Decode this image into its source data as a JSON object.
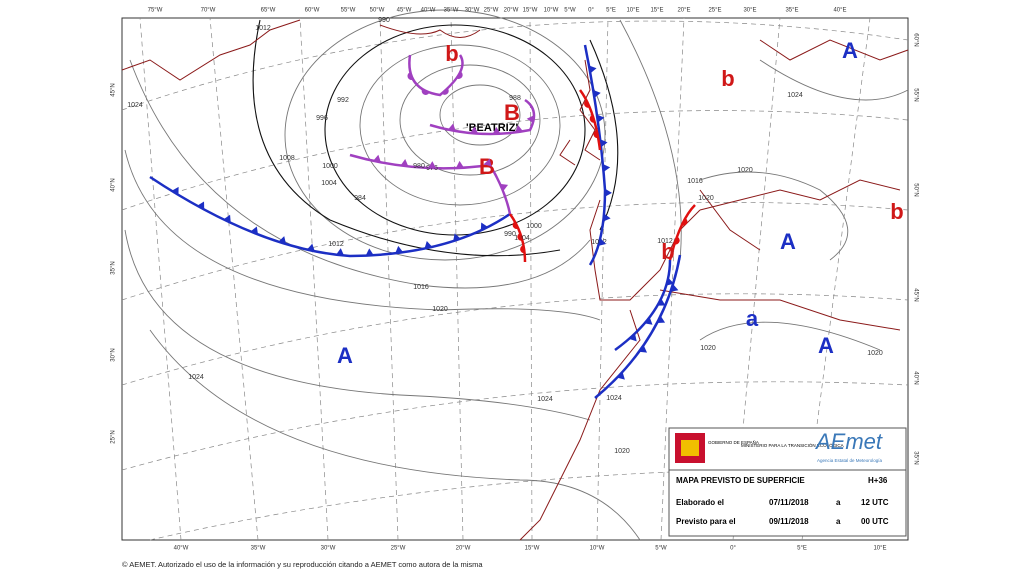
{
  "top_axis_labels": [
    "75°W",
    "70°W",
    "65°W",
    "60°W",
    "55°W",
    "50°W",
    "45°W",
    "40°W",
    "35°W",
    "30°W",
    "25°W",
    "20°W",
    "15°W",
    "10°W",
    "5°W",
    "0°",
    "5°E",
    "10°E",
    "15°E",
    "20°E",
    "25°E",
    "30°E",
    "35°E",
    "40°E"
  ],
  "bottom_axis_labels": [
    "40°W",
    "35°W",
    "30°W",
    "25°W",
    "20°W",
    "15°W",
    "10°W",
    "5°W",
    "0°",
    "5°E",
    "10°E"
  ],
  "left_axis_labels": [
    "45°N",
    "40°N",
    "35°N",
    "30°N",
    "25°N"
  ],
  "right_axis_labels": [
    "60°N",
    "55°N",
    "50°N",
    "45°N",
    "40°N",
    "35°N"
  ],
  "pressure_centers": [
    "A",
    "b",
    "B",
    "b",
    "B",
    "A",
    "A",
    "a",
    "A",
    "b",
    "b"
  ],
  "storm_name": "'BEATRIZ'",
  "isobar_labels": [
    "1012",
    "990",
    "992",
    "996",
    "1008",
    "1000",
    "1004",
    "980",
    "976",
    "984",
    "988",
    "1012",
    "1016",
    "1020",
    "1024",
    "1024",
    "1012",
    "1016",
    "1020",
    "1024",
    "1020",
    "1020",
    "1020",
    "1020",
    "1024",
    "1024",
    "1012",
    "990",
    "1000",
    "1004"
  ],
  "info_box": {
    "government": "GOBIERNO DE ESPAÑA",
    "ministry": "MINISTERIO PARA LA TRANSICIÓN ECOLÓGICA",
    "logo": "AEmet",
    "agency": "Agencia Estatal de Meteorología",
    "title": "MAPA PREVISTO DE SUPERFICIE",
    "horizon": "H+36",
    "made_label": "Elaborado el",
    "made_date": "07/11/2018",
    "made_at": "a",
    "made_time": "12 UTC",
    "valid_label": "Previsto para el",
    "valid_date": "09/11/2018",
    "valid_at": "a",
    "valid_time": "00 UTC"
  },
  "footer": "© AEMET. Autorizado el uso de la información y su reproducción citando a AEMET como autora de la misma"
}
